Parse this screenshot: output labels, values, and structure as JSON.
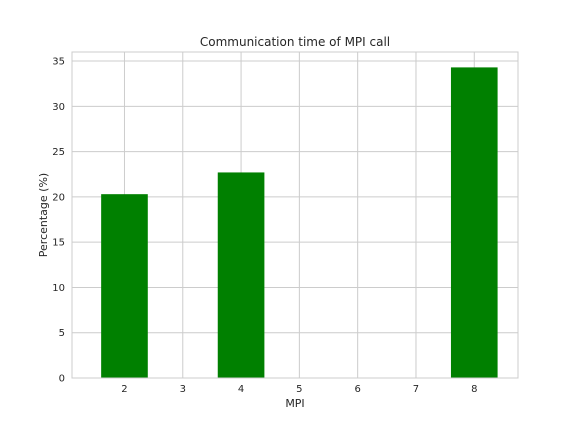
{
  "chart_data": {
    "type": "bar",
    "title": "Communication time of MPI call",
    "xlabel": "MPI",
    "ylabel": "Percentage (%)",
    "x": [
      2,
      4,
      8
    ],
    "values": [
      20.3,
      22.7,
      34.3
    ],
    "xlim": [
      1.1,
      8.75
    ],
    "ylim": [
      0,
      36
    ],
    "x_ticks": [
      2,
      3,
      4,
      5,
      6,
      7,
      8
    ],
    "y_ticks": [
      0,
      5,
      10,
      15,
      20,
      25,
      30,
      35
    ],
    "bar_width": 0.8,
    "bar_color": "#008000",
    "grid": true
  }
}
